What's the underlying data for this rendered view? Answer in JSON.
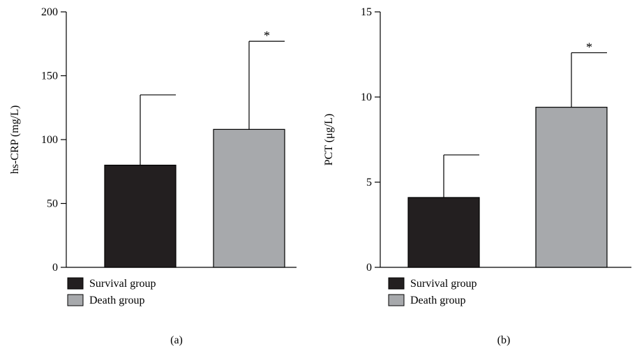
{
  "chart_data": [
    {
      "type": "bar",
      "panel_label": "(a)",
      "ylabel": "hs-CRP (mg/L)",
      "ylim": [
        0,
        200
      ],
      "yticks": [
        0,
        50,
        100,
        150,
        200
      ],
      "categories": [
        "Survival group",
        "Death group"
      ],
      "values": [
        80,
        108
      ],
      "errors": [
        55,
        69
      ],
      "significance": [
        "",
        "*"
      ],
      "colors": [
        "#231f20",
        "#a7a9ac"
      ],
      "legend": [
        "Survival group",
        "Death group"
      ],
      "legend_position": "bottom-left",
      "grid": false
    },
    {
      "type": "bar",
      "panel_label": "(b)",
      "ylabel": "PCT (μg/L)",
      "ylim": [
        0,
        15
      ],
      "yticks": [
        0,
        5,
        10,
        15
      ],
      "categories": [
        "Survival group",
        "Death group"
      ],
      "values": [
        4.1,
        9.4
      ],
      "errors": [
        2.5,
        3.2
      ],
      "significance": [
        "",
        "*"
      ],
      "colors": [
        "#231f20",
        "#a7a9ac"
      ],
      "legend": [
        "Survival group",
        "Death group"
      ],
      "legend_position": "bottom-left",
      "grid": false
    }
  ]
}
